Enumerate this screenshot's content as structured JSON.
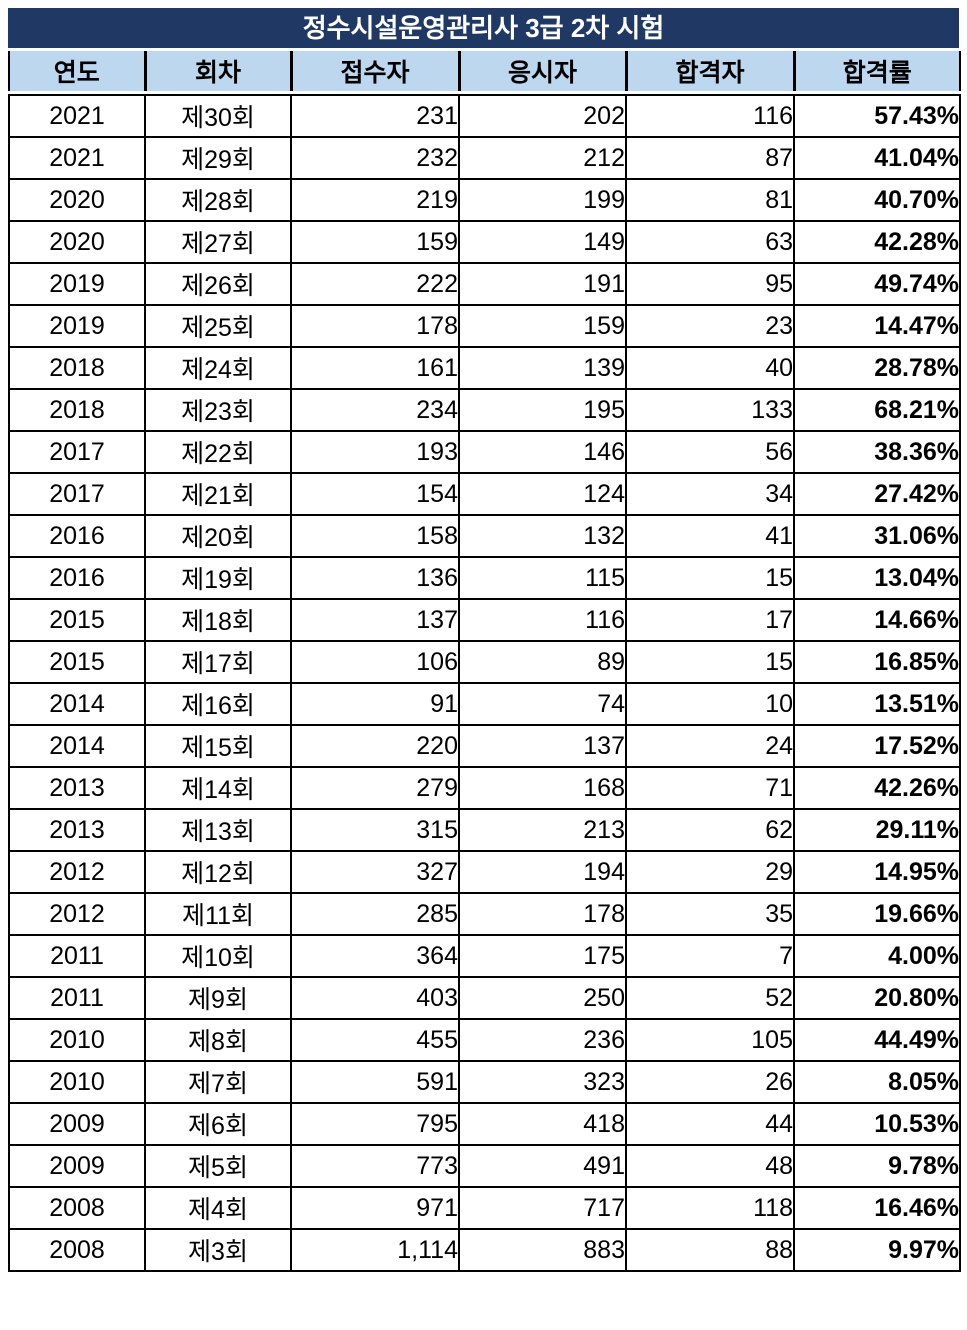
{
  "table": {
    "title": "정수시설운영관리사 3급 2차 시험",
    "columns": [
      "연도",
      "회차",
      "접수자",
      "응시자",
      "합격자",
      "합격률"
    ],
    "rows": [
      [
        "2021",
        "제30회",
        "231",
        "202",
        "116",
        "57.43%"
      ],
      [
        "2021",
        "제29회",
        "232",
        "212",
        "87",
        "41.04%"
      ],
      [
        "2020",
        "제28회",
        "219",
        "199",
        "81",
        "40.70%"
      ],
      [
        "2020",
        "제27회",
        "159",
        "149",
        "63",
        "42.28%"
      ],
      [
        "2019",
        "제26회",
        "222",
        "191",
        "95",
        "49.74%"
      ],
      [
        "2019",
        "제25회",
        "178",
        "159",
        "23",
        "14.47%"
      ],
      [
        "2018",
        "제24회",
        "161",
        "139",
        "40",
        "28.78%"
      ],
      [
        "2018",
        "제23회",
        "234",
        "195",
        "133",
        "68.21%"
      ],
      [
        "2017",
        "제22회",
        "193",
        "146",
        "56",
        "38.36%"
      ],
      [
        "2017",
        "제21회",
        "154",
        "124",
        "34",
        "27.42%"
      ],
      [
        "2016",
        "제20회",
        "158",
        "132",
        "41",
        "31.06%"
      ],
      [
        "2016",
        "제19회",
        "136",
        "115",
        "15",
        "13.04%"
      ],
      [
        "2015",
        "제18회",
        "137",
        "116",
        "17",
        "14.66%"
      ],
      [
        "2015",
        "제17회",
        "106",
        "89",
        "15",
        "16.85%"
      ],
      [
        "2014",
        "제16회",
        "91",
        "74",
        "10",
        "13.51%"
      ],
      [
        "2014",
        "제15회",
        "220",
        "137",
        "24",
        "17.52%"
      ],
      [
        "2013",
        "제14회",
        "279",
        "168",
        "71",
        "42.26%"
      ],
      [
        "2013",
        "제13회",
        "315",
        "213",
        "62",
        "29.11%"
      ],
      [
        "2012",
        "제12회",
        "327",
        "194",
        "29",
        "14.95%"
      ],
      [
        "2012",
        "제11회",
        "285",
        "178",
        "35",
        "19.66%"
      ],
      [
        "2011",
        "제10회",
        "364",
        "175",
        "7",
        "4.00%"
      ],
      [
        "2011",
        "제9회",
        "403",
        "250",
        "52",
        "20.80%"
      ],
      [
        "2010",
        "제8회",
        "455",
        "236",
        "105",
        "44.49%"
      ],
      [
        "2010",
        "제7회",
        "591",
        "323",
        "26",
        "8.05%"
      ],
      [
        "2009",
        "제6회",
        "795",
        "418",
        "44",
        "10.53%"
      ],
      [
        "2009",
        "제5회",
        "773",
        "491",
        "48",
        "9.78%"
      ],
      [
        "2008",
        "제4회",
        "971",
        "717",
        "118",
        "16.46%"
      ],
      [
        "2008",
        "제3회",
        "1,114",
        "883",
        "88",
        "9.97%"
      ]
    ]
  },
  "colors": {
    "title_bg": "#1F3864",
    "title_text": "#FFFFFF",
    "header_bg": "#BDD7EE",
    "header_text": "#000000",
    "rate_text": "#0070C0",
    "grid": "#000000"
  }
}
